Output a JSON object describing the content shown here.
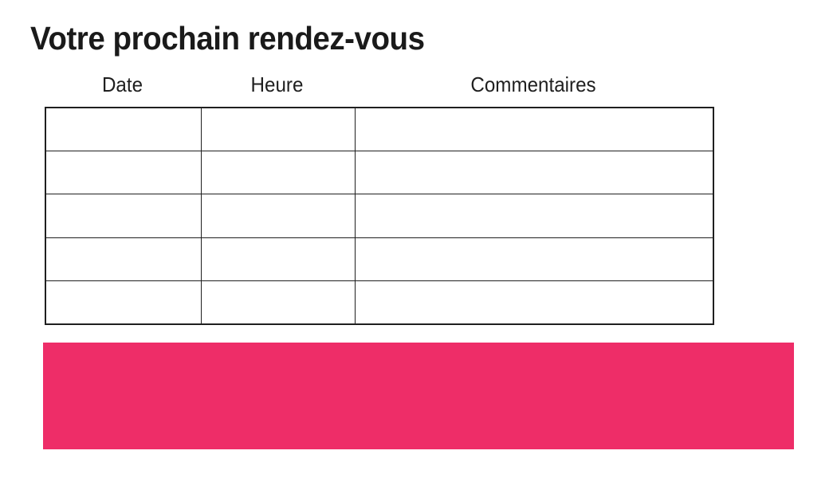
{
  "page": {
    "title": "Votre prochain rendez-vous",
    "background": "#ffffff",
    "title_color": "#1a1a1a"
  },
  "table": {
    "columns": [
      {
        "label": "Date"
      },
      {
        "label": "Heure"
      },
      {
        "label": "Commentaires"
      }
    ],
    "rows": [
      [
        "",
        "",
        ""
      ],
      [
        "",
        "",
        ""
      ],
      [
        "",
        "",
        ""
      ],
      [
        "",
        "",
        ""
      ],
      [
        "",
        "",
        ""
      ]
    ],
    "border_color": "#1f1f1f"
  },
  "banner": {
    "color": "#EE2D68",
    "text": ""
  }
}
